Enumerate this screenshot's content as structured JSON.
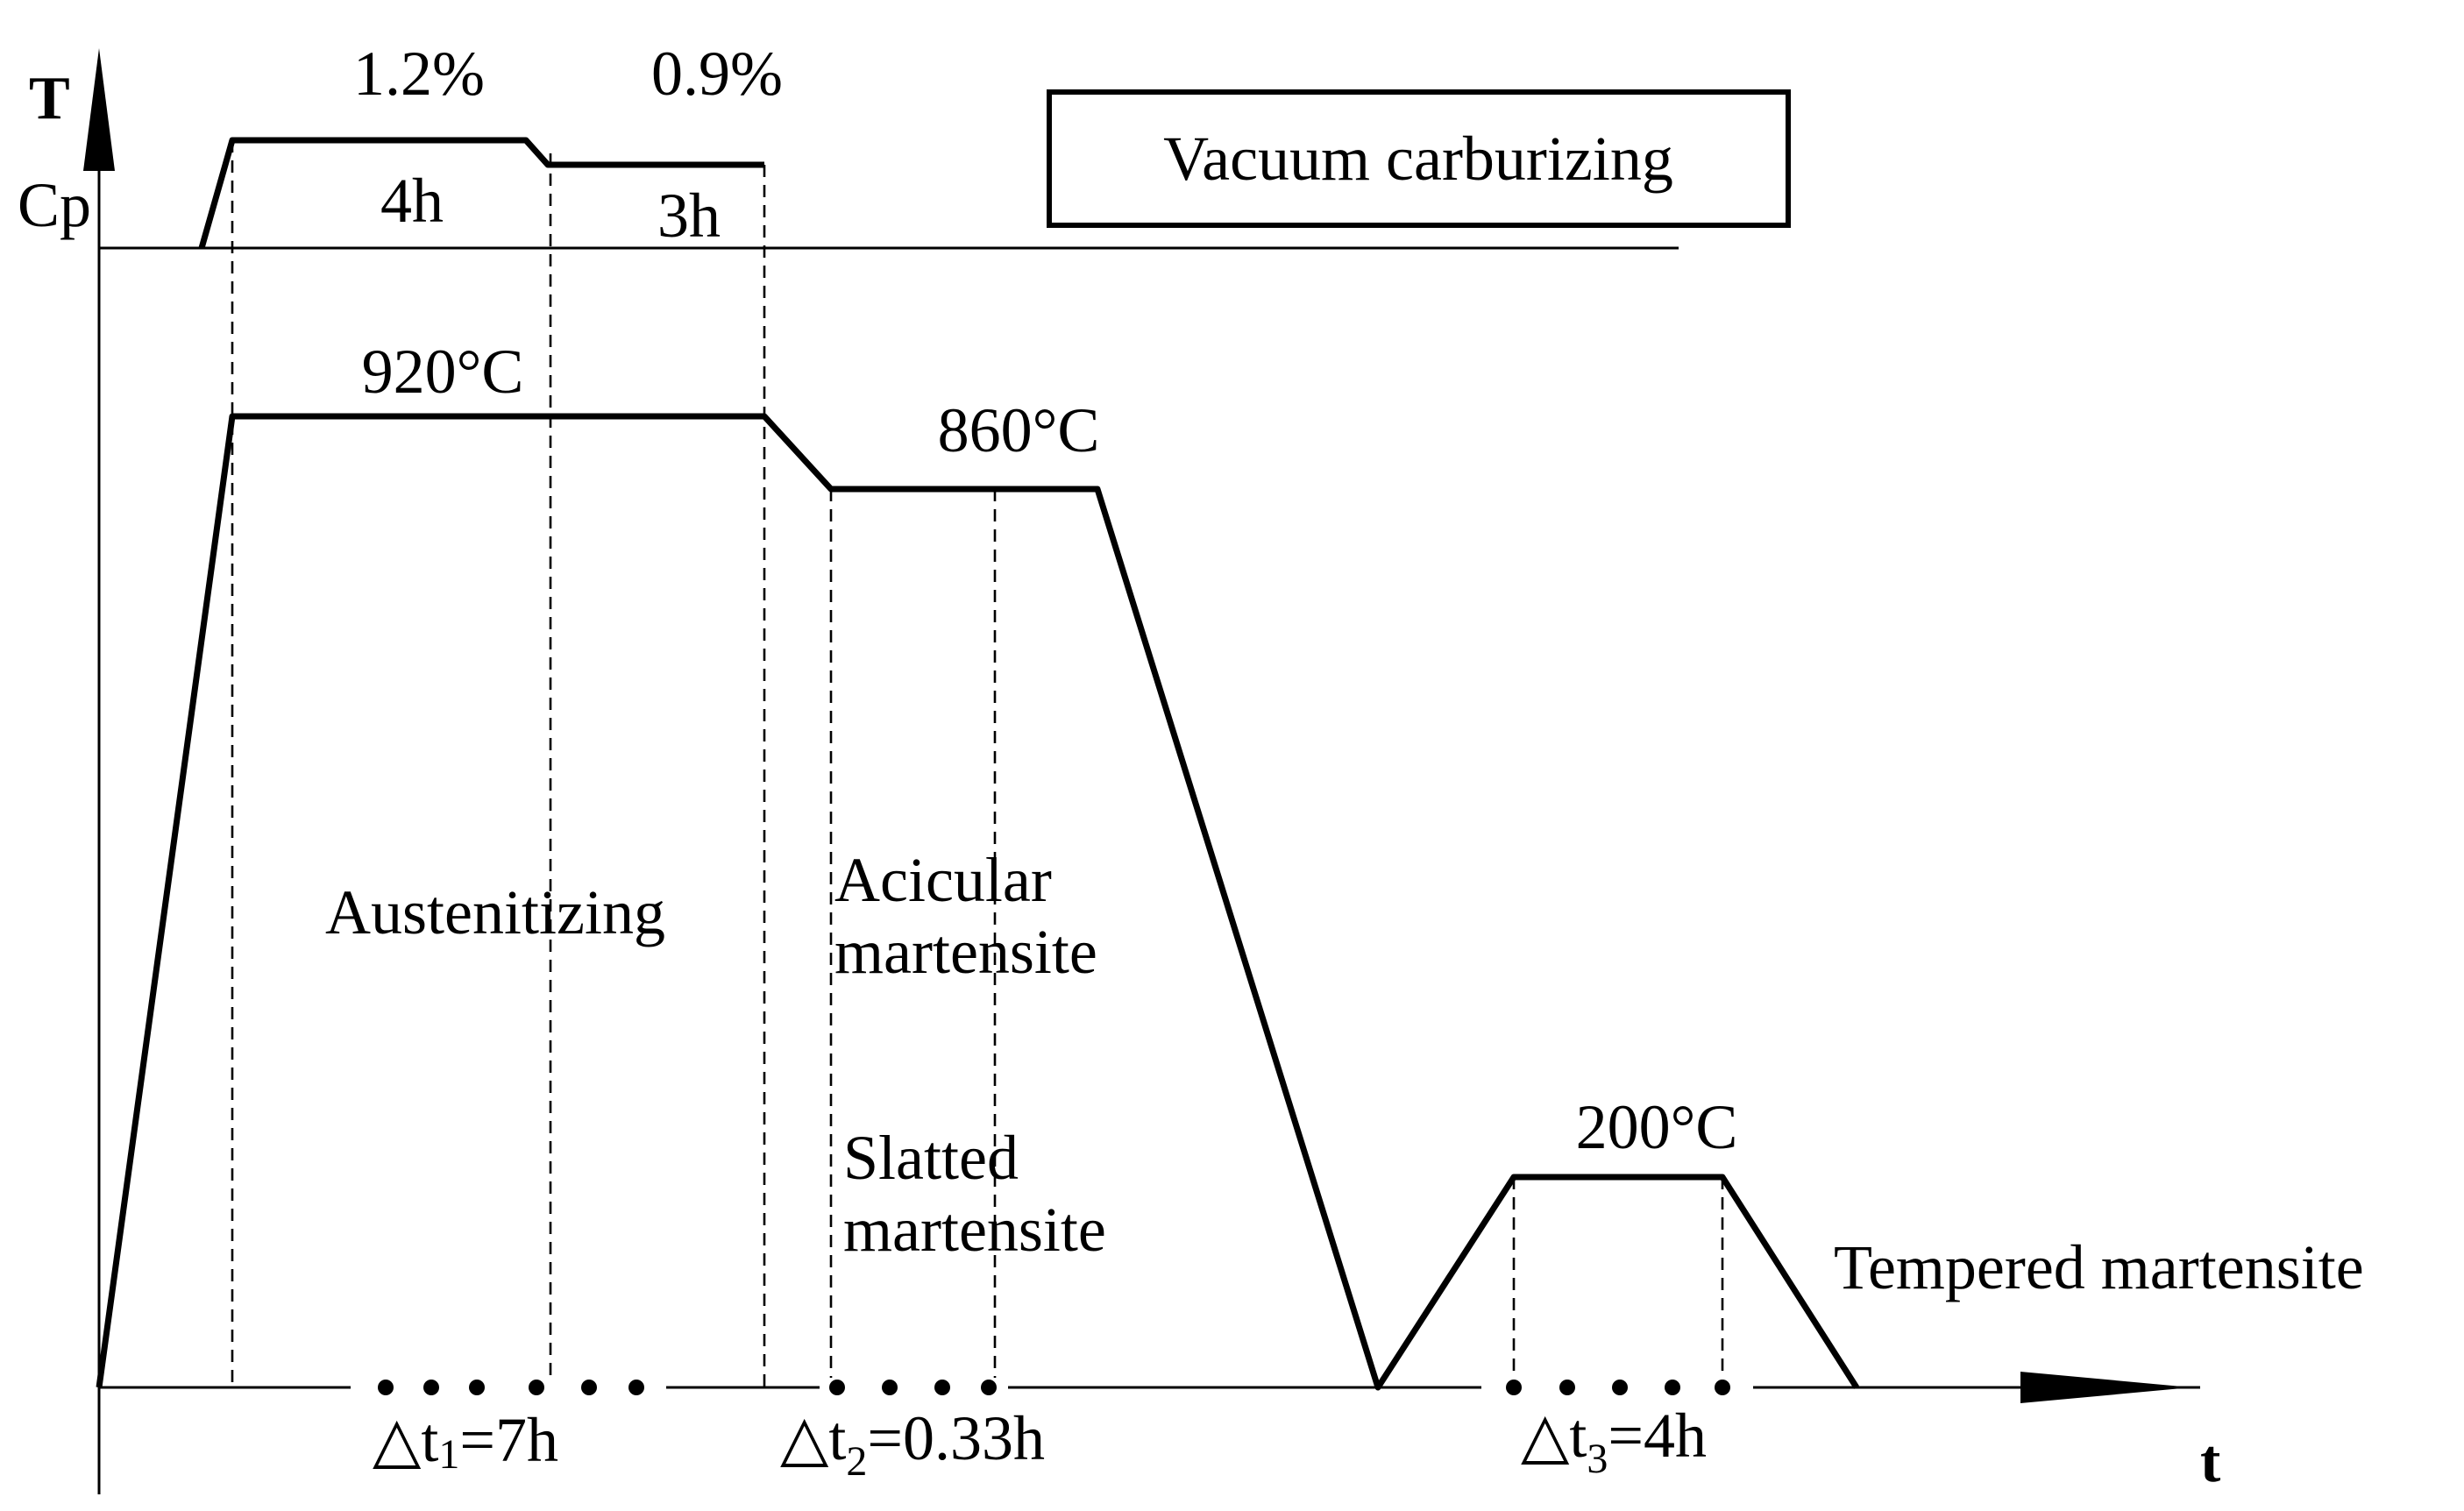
{
  "axes": {
    "y_label_T": "T",
    "y_label_Cp": "Cp",
    "x_label": "t"
  },
  "legend_box": {
    "text": "Vacuum carburizing"
  },
  "carbon_potential": {
    "stage1": {
      "level": "1.2%",
      "duration": "4h"
    },
    "stage2": {
      "level": "0.9%",
      "duration": "3h"
    }
  },
  "temperatures": {
    "austenitizing": "920°C",
    "quench_hold": "860°C",
    "tempering": "200°C"
  },
  "phases": {
    "austenitizing": "Austenitizing",
    "acicular_line1": "Acicular",
    "acicular_line2": "martensite",
    "slatted_line1": "Slatted",
    "slatted_line2": "martensite",
    "tempered": "Tempered martensite"
  },
  "intervals": {
    "dt1": {
      "symbol": "△t",
      "sub": "1",
      "value": "=7h"
    },
    "dt2": {
      "symbol": "△t",
      "sub": "2",
      "value": "=0.33h"
    },
    "dt3": {
      "symbol": "△t",
      "sub": "3",
      "value": "=4h"
    }
  }
}
